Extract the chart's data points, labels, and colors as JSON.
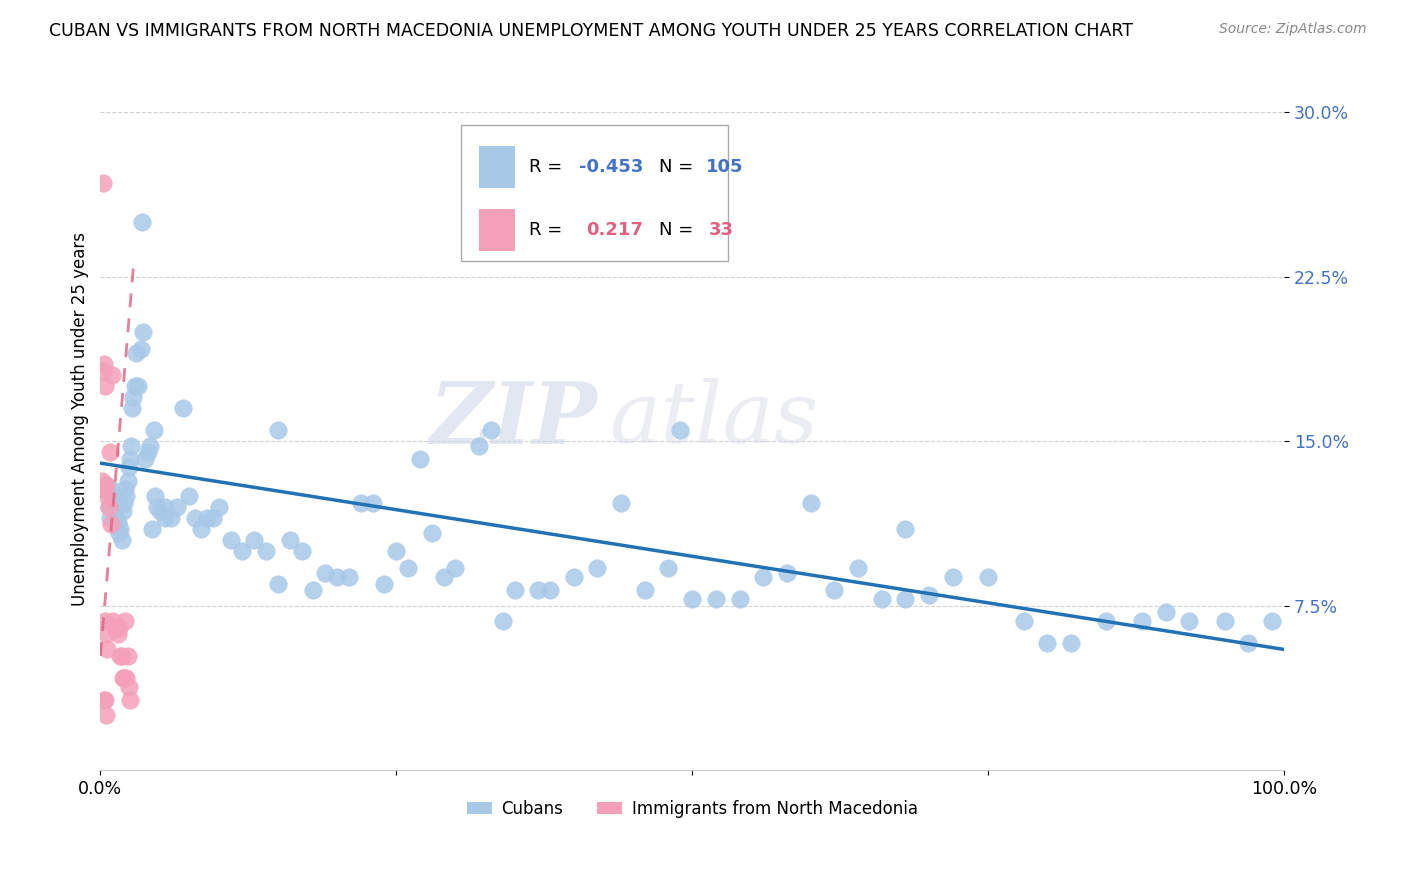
{
  "title": "CUBAN VS IMMIGRANTS FROM NORTH MACEDONIA UNEMPLOYMENT AMONG YOUTH UNDER 25 YEARS CORRELATION CHART",
  "source": "Source: ZipAtlas.com",
  "ylabel": "Unemployment Among Youth under 25 years",
  "yticks": [
    0.075,
    0.15,
    0.225,
    0.3
  ],
  "ytick_labels": [
    "7.5%",
    "15.0%",
    "22.5%",
    "30.0%"
  ],
  "xlim": [
    0.0,
    1.0
  ],
  "ylim": [
    0.0,
    0.32
  ],
  "legend_cuban_R": "-0.453",
  "legend_cuban_N": "105",
  "legend_mac_R": "0.217",
  "legend_mac_N": "33",
  "blue_color": "#a8c8e8",
  "pink_color": "#f4a0b8",
  "blue_line_color": "#2171b5",
  "pink_line_color": "#e06080",
  "watermark_zip": "ZIP",
  "watermark_atlas": "atlas",
  "cuban_x": [
    0.005,
    0.007,
    0.008,
    0.009,
    0.01,
    0.011,
    0.012,
    0.013,
    0.014,
    0.015,
    0.016,
    0.017,
    0.018,
    0.019,
    0.02,
    0.021,
    0.022,
    0.023,
    0.024,
    0.025,
    0.026,
    0.027,
    0.028,
    0.029,
    0.03,
    0.032,
    0.034,
    0.036,
    0.038,
    0.04,
    0.042,
    0.044,
    0.046,
    0.048,
    0.05,
    0.055,
    0.06,
    0.065,
    0.07,
    0.075,
    0.08,
    0.085,
    0.09,
    0.095,
    0.1,
    0.11,
    0.12,
    0.13,
    0.14,
    0.15,
    0.16,
    0.17,
    0.18,
    0.19,
    0.2,
    0.21,
    0.22,
    0.23,
    0.24,
    0.25,
    0.26,
    0.27,
    0.28,
    0.29,
    0.3,
    0.32,
    0.34,
    0.35,
    0.37,
    0.38,
    0.4,
    0.42,
    0.44,
    0.46,
    0.48,
    0.5,
    0.52,
    0.54,
    0.56,
    0.58,
    0.6,
    0.62,
    0.64,
    0.66,
    0.68,
    0.7,
    0.72,
    0.75,
    0.78,
    0.8,
    0.82,
    0.85,
    0.88,
    0.9,
    0.92,
    0.95,
    0.97,
    0.99,
    0.035,
    0.045,
    0.055,
    0.15,
    0.33,
    0.49,
    0.68
  ],
  "cuban_y": [
    0.13,
    0.12,
    0.115,
    0.128,
    0.122,
    0.125,
    0.118,
    0.115,
    0.12,
    0.113,
    0.108,
    0.11,
    0.105,
    0.118,
    0.122,
    0.128,
    0.125,
    0.132,
    0.138,
    0.142,
    0.148,
    0.165,
    0.17,
    0.175,
    0.19,
    0.175,
    0.192,
    0.2,
    0.142,
    0.145,
    0.148,
    0.11,
    0.125,
    0.12,
    0.118,
    0.115,
    0.115,
    0.12,
    0.165,
    0.125,
    0.115,
    0.11,
    0.115,
    0.115,
    0.12,
    0.105,
    0.1,
    0.105,
    0.1,
    0.085,
    0.105,
    0.1,
    0.082,
    0.09,
    0.088,
    0.088,
    0.122,
    0.122,
    0.085,
    0.1,
    0.092,
    0.142,
    0.108,
    0.088,
    0.092,
    0.148,
    0.068,
    0.082,
    0.082,
    0.082,
    0.088,
    0.092,
    0.122,
    0.082,
    0.092,
    0.078,
    0.078,
    0.078,
    0.088,
    0.09,
    0.122,
    0.082,
    0.092,
    0.078,
    0.078,
    0.08,
    0.088,
    0.088,
    0.068,
    0.058,
    0.058,
    0.068,
    0.068,
    0.072,
    0.068,
    0.068,
    0.058,
    0.068,
    0.25,
    0.155,
    0.12,
    0.155,
    0.155,
    0.155,
    0.11
  ],
  "mac_x": [
    0.001,
    0.002,
    0.003,
    0.004,
    0.005,
    0.006,
    0.007,
    0.008,
    0.009,
    0.01,
    0.011,
    0.012,
    0.013,
    0.014,
    0.015,
    0.016,
    0.017,
    0.018,
    0.019,
    0.02,
    0.021,
    0.022,
    0.023,
    0.024,
    0.025,
    0.002,
    0.003,
    0.004,
    0.005,
    0.006,
    0.003,
    0.004,
    0.005
  ],
  "mac_y": [
    0.132,
    0.268,
    0.185,
    0.175,
    0.13,
    0.125,
    0.12,
    0.145,
    0.112,
    0.18,
    0.068,
    0.065,
    0.065,
    0.065,
    0.062,
    0.065,
    0.052,
    0.052,
    0.042,
    0.042,
    0.068,
    0.042,
    0.052,
    0.038,
    0.032,
    0.182,
    0.128,
    0.068,
    0.062,
    0.055,
    0.032,
    0.032,
    0.025
  ],
  "blue_line_x0": 0.0,
  "blue_line_y0": 0.14,
  "blue_line_x1": 1.0,
  "blue_line_y1": 0.055,
  "pink_line_x0": 0.0,
  "pink_line_y0": 0.052,
  "pink_line_x1": 0.028,
  "pink_line_y1": 0.23
}
